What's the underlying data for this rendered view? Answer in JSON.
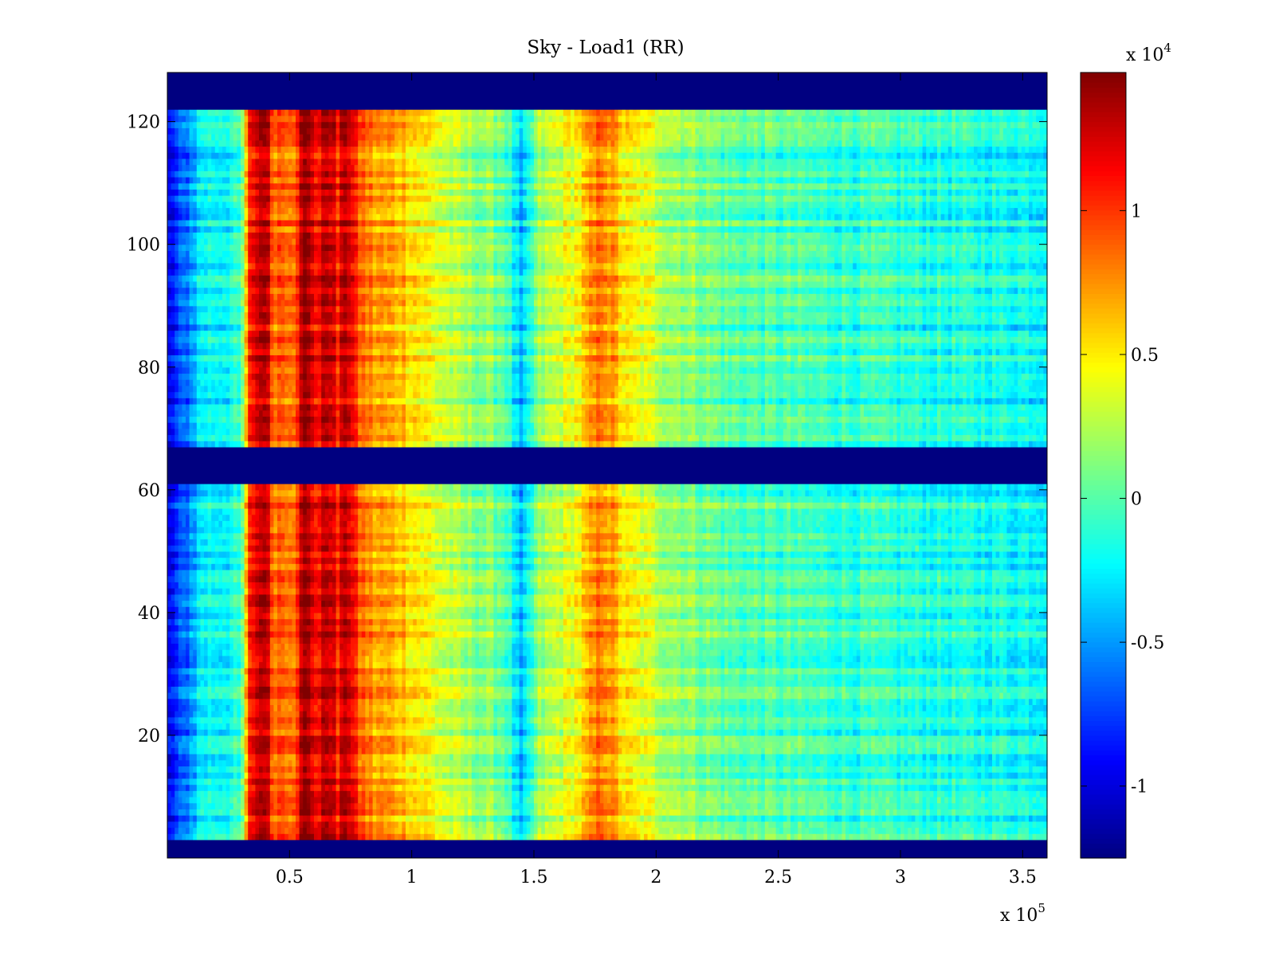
{
  "chart_data": {
    "type": "heatmap",
    "title": "Sky - Load1 (RR)",
    "xlabel": "",
    "ylabel": "",
    "x_multiplier": "x 10",
    "x_multiplier_exp": "5",
    "xlim": [
      0,
      360000
    ],
    "ylim": [
      0,
      128
    ],
    "x_ticks": [
      50000,
      100000,
      150000,
      200000,
      250000,
      300000,
      350000
    ],
    "x_tick_labels": [
      "0.5",
      "1",
      "1.5",
      "2",
      "2.5",
      "3",
      "3.5"
    ],
    "y_ticks": [
      20,
      40,
      60,
      80,
      100,
      120
    ],
    "y_tick_labels": [
      "20",
      "40",
      "60",
      "80",
      "100",
      "120"
    ],
    "colorscale": "jet",
    "colorbar": {
      "multiplier": "x 10",
      "multiplier_exp": "4",
      "clim": [
        -12500,
        14800
      ],
      "ticks": [
        -10000,
        -5000,
        0,
        5000,
        10000
      ],
      "tick_labels": [
        "-1",
        "-0.5",
        "0",
        "0.5",
        "1"
      ]
    },
    "masked_rows": [
      [
        0,
        3
      ],
      [
        61,
        67
      ],
      [
        122,
        128
      ]
    ],
    "masked_value": -12500,
    "x_profile": {
      "x": [
        0,
        8000,
        14000,
        30000,
        34000,
        40000,
        43000,
        52000,
        56000,
        62000,
        66000,
        70000,
        73000,
        78000,
        85000,
        95000,
        108000,
        120000,
        138000,
        145000,
        152000,
        168000,
        178000,
        188000,
        205000,
        230000,
        280000,
        330000,
        360000
      ],
      "value": [
        -10000,
        -6000,
        -2500,
        -1500,
        11000,
        14000,
        9000,
        9000,
        14000,
        11000,
        14000,
        10000,
        14000,
        9000,
        7000,
        6500,
        4000,
        2000,
        500,
        -5000,
        1500,
        4500,
        8500,
        4500,
        2200,
        0,
        -1000,
        -1800,
        -2000
      ]
    }
  }
}
